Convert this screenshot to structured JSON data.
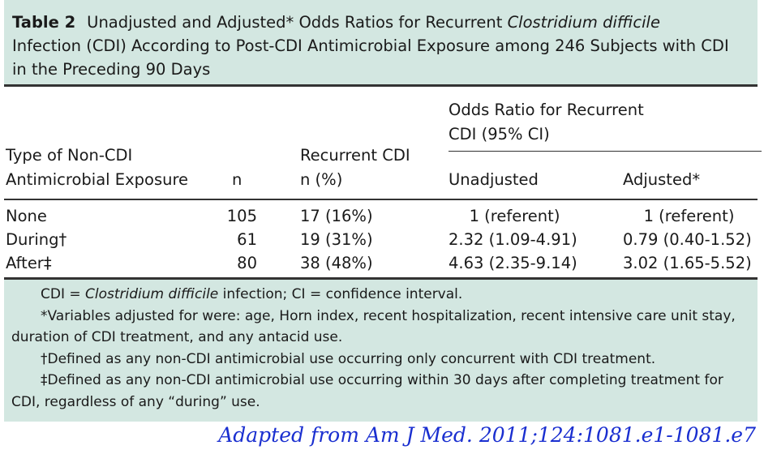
{
  "title": {
    "label": "Table 2",
    "text_before": "Unadjusted and Adjusted* Odds Ratios for Recurrent ",
    "text_italic": "Clostridium difficile",
    "line2": "Infection (CDI) According to Post-CDI Antimicrobial Exposure among 246 Subjects with CDI",
    "line3": "in the Preceding 90 Days"
  },
  "columns": {
    "type_line1": "Type of Non-CDI",
    "type_line2": "Antimicrobial Exposure",
    "n": "n",
    "recurrent_line1": "Recurrent CDI",
    "recurrent_line2": "n (%)",
    "or_group_line1": "Odds Ratio for Recurrent",
    "or_group_line2": "CDI (95% CI)",
    "unadjusted": "Unadjusted",
    "adjusted": "Adjusted*"
  },
  "rows": [
    {
      "type": "None",
      "n": "105",
      "recurrent": "17 (16%)",
      "unadjusted": "1 (referent)",
      "adjusted": "1 (referent)"
    },
    {
      "type": "During†",
      "n": "61",
      "recurrent": "19 (31%)",
      "unadjusted": "2.32 (1.09-4.91)",
      "adjusted": "0.79 (0.40-1.52)"
    },
    {
      "type": "After‡",
      "n": "80",
      "recurrent": "38 (48%)",
      "unadjusted": "4.63 (2.35-9.14)",
      "adjusted": "3.02 (1.65-5.52)"
    }
  ],
  "footnotes": {
    "abbrev_before": "CDI = ",
    "abbrev_italic": "Clostridium difficile",
    "abbrev_after": " infection; CI = confidence interval.",
    "adjusted_line1": "*Variables adjusted for were: age, Horn index, recent hospitalization, recent intensive care unit stay,",
    "adjusted_line2": "duration of CDI treatment, and any antacid use.",
    "during": "†Defined as any non-CDI antimicrobial use occurring only concurrent with CDI treatment.",
    "after_line1": "‡Defined as any non-CDI antimicrobial use occurring within 30 days after completing treatment for",
    "after_line2": "CDI, regardless of any “during” use."
  },
  "citation": "Adapted from Am J Med. 2011;124:1081.e1-1081.e7",
  "colors": {
    "header_bg": "#d3e7e1",
    "citation": "#1a2fd0"
  }
}
